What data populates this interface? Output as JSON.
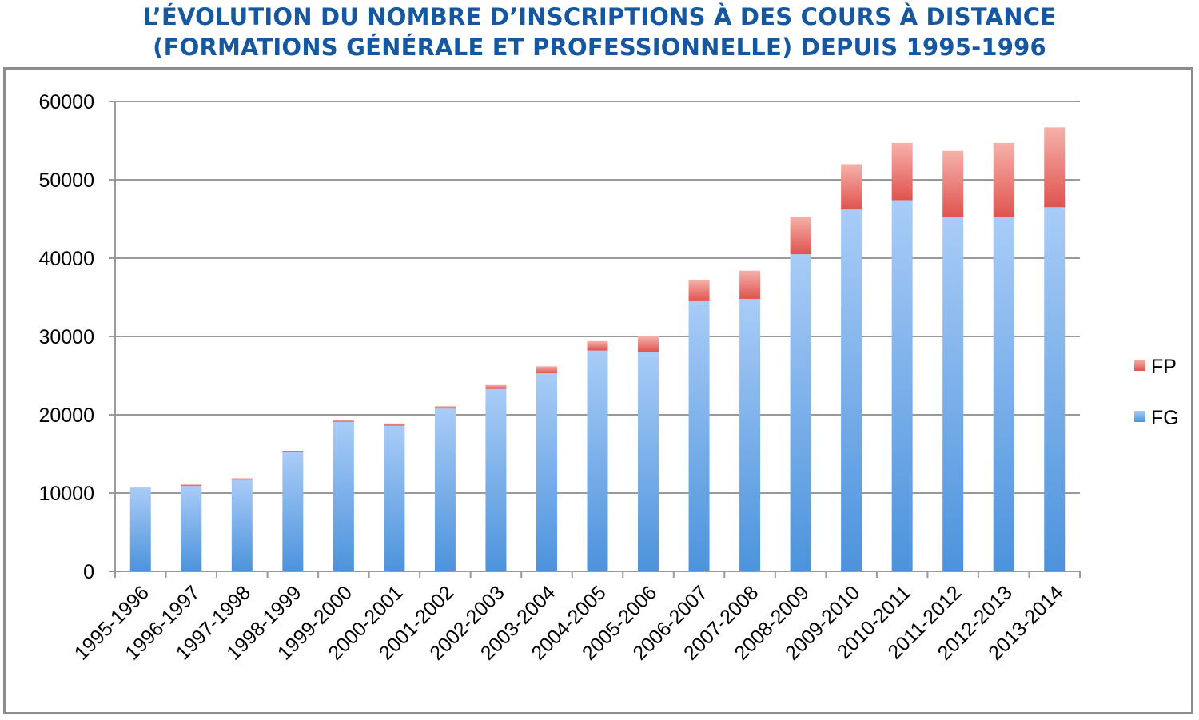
{
  "title": {
    "line1": "L’ÉVOLUTION DU NOMBRE D’INSCRIPTIONS À DES COURS À DISTANCE",
    "line2": "(FORMATIONS GÉNÉRALE ET PROFESSIONNELLE) DEPUIS 1995-1996"
  },
  "colors": {
    "title": "#1557a0",
    "fg_top": "#a9ccf7",
    "fg_bottom": "#4c93dc",
    "fp_top": "#f6b1ab",
    "fp_bottom": "#e0534e",
    "grid": "#9a9a9a"
  },
  "chart_data": {
    "type": "bar",
    "stacked": true,
    "title": "L’ÉVOLUTION DU NOMBRE D’INSCRIPTIONS À DES COURS À DISTANCE (FORMATIONS GÉNÉRALE ET PROFESSIONNELLE) DEPUIS 1995-1996",
    "xlabel": "",
    "ylabel": "",
    "ylim": [
      0,
      60000
    ],
    "yticks": [
      0,
      10000,
      20000,
      30000,
      40000,
      50000,
      60000
    ],
    "grid": true,
    "legend_position": "right",
    "categories": [
      "1995-1996",
      "1996-1997",
      "1997-1998",
      "1998-1999",
      "1999-2000",
      "2000-2001",
      "2001-2002",
      "2002-2003",
      "2003-2004",
      "2004-2005",
      "2005-2006",
      "2006-2007",
      "2007-2008",
      "2008-2009",
      "2009-2010",
      "2010-2011",
      "2011-2012",
      "2012-2013",
      "2013-2014"
    ],
    "series": [
      {
        "name": "FG",
        "values": [
          10700,
          10900,
          11700,
          15200,
          19100,
          18600,
          20800,
          23300,
          25300,
          28200,
          28000,
          34500,
          34800,
          40500,
          46200,
          47400,
          45200,
          45200,
          46500
        ]
      },
      {
        "name": "FP",
        "values": [
          0,
          200,
          200,
          200,
          200,
          300,
          300,
          500,
          900,
          1200,
          2000,
          2700,
          3600,
          4800,
          5800,
          7300,
          8500,
          9500,
          10200
        ]
      }
    ]
  }
}
